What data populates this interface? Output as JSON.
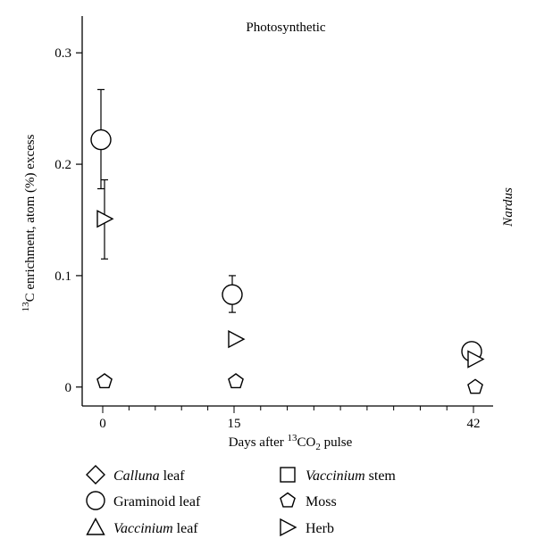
{
  "chart_data": {
    "type": "scatter",
    "panel_title": "Photosynthetic",
    "side_label": "Nardus",
    "xlabel": {
      "pre": "Days after ",
      "sup": "13",
      "mid": "CO",
      "sub": "2",
      "post": " pulse"
    },
    "ylabel": {
      "sup": "13",
      "rest": "C enrichment, atom (%) excess"
    },
    "x_categories": [
      "0",
      "15",
      "42"
    ],
    "y_ticks": [
      {
        "value": 0,
        "label": "0"
      },
      {
        "value": 0.1,
        "label": "0.1"
      },
      {
        "value": 0.2,
        "label": "0.2"
      },
      {
        "value": 0.3,
        "label": "0.3"
      }
    ],
    "ylim": [
      -0.017,
      0.333
    ],
    "series": [
      {
        "name": "Graminoid leaf",
        "marker": "circle",
        "points": [
          {
            "x": "0",
            "y": 0.222,
            "err_low": 0.178,
            "err_high": 0.267
          },
          {
            "x": "15",
            "y": 0.083,
            "err_low": 0.067,
            "err_high": 0.1
          },
          {
            "x": "42",
            "y": 0.032,
            "err_low": 0.032,
            "err_high": 0.032
          }
        ]
      },
      {
        "name": "Herb",
        "marker": "triangle-right",
        "points": [
          {
            "x": "0",
            "y": 0.151,
            "err_low": 0.115,
            "err_high": 0.186
          },
          {
            "x": "15",
            "y": 0.043,
            "err_low": 0.043,
            "err_high": 0.043
          },
          {
            "x": "42",
            "y": 0.025,
            "err_low": 0.025,
            "err_high": 0.025
          }
        ]
      },
      {
        "name": "Moss",
        "marker": "pentagon",
        "points": [
          {
            "x": "0",
            "y": 0.005
          },
          {
            "x": "15",
            "y": 0.005
          },
          {
            "x": "42",
            "y": 0.0
          }
        ]
      }
    ],
    "legend": [
      {
        "marker": "diamond",
        "italic": "Calluna",
        "rest": " leaf"
      },
      {
        "marker": "square",
        "italic": "Vaccinium",
        "rest": " stem"
      },
      {
        "marker": "circle",
        "italic": "",
        "rest": "Graminoid leaf"
      },
      {
        "marker": "pentagon",
        "italic": "",
        "rest": "Moss"
      },
      {
        "marker": "triangle-up",
        "italic": "Vaccinium",
        "rest": " leaf"
      },
      {
        "marker": "triangle-right",
        "italic": "",
        "rest": "Herb"
      }
    ]
  }
}
